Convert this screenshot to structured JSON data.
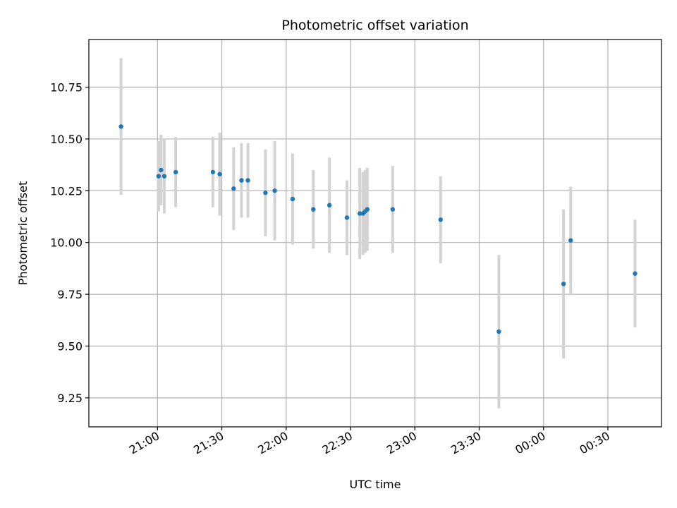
{
  "chart_data": {
    "type": "scatter",
    "title": "Photometric offset variation",
    "xlabel": "UTC time",
    "ylabel": "Photometric offset",
    "x_unit": "datetime",
    "xlim": [
      "20:28",
      "24:55"
    ],
    "ylim": [
      9.11,
      10.98
    ],
    "x_ticks": [
      {
        "time": "21:00",
        "label": "21:00"
      },
      {
        "time": "21:30",
        "label": "21:30"
      },
      {
        "time": "22:00",
        "label": "22:00"
      },
      {
        "time": "22:30",
        "label": "22:30"
      },
      {
        "time": "23:00",
        "label": "23:00"
      },
      {
        "time": "23:30",
        "label": "23:30"
      },
      {
        "time": "24:00",
        "label": "00:00"
      },
      {
        "time": "24:30",
        "label": "00:30"
      }
    ],
    "y_ticks": [
      9.25,
      9.5,
      9.75,
      10.0,
      10.25,
      10.5,
      10.75
    ],
    "y_tick_labels": [
      "9.25",
      "9.50",
      "9.75",
      "10.00",
      "10.25",
      "10.50",
      "10.75"
    ],
    "grid": true,
    "colors": {
      "point": "#1f77b4",
      "error_bar": "#d3d3d3",
      "grid": "#b0b0b0",
      "axes": "#000000"
    },
    "points": [
      {
        "time": "20:43:00",
        "y": 10.56,
        "err": 0.33
      },
      {
        "time": "21:00:30",
        "y": 10.32,
        "err": 0.17
      },
      {
        "time": "21:01:40",
        "y": 10.35,
        "err": 0.17
      },
      {
        "time": "21:03:10",
        "y": 10.32,
        "err": 0.18
      },
      {
        "time": "21:08:30",
        "y": 10.34,
        "err": 0.17
      },
      {
        "time": "21:25:50",
        "y": 10.34,
        "err": 0.17
      },
      {
        "time": "21:29:00",
        "y": 10.33,
        "err": 0.2
      },
      {
        "time": "21:35:30",
        "y": 10.26,
        "err": 0.2
      },
      {
        "time": "21:39:10",
        "y": 10.3,
        "err": 0.18
      },
      {
        "time": "21:42:10",
        "y": 10.3,
        "err": 0.18
      },
      {
        "time": "21:50:20",
        "y": 10.24,
        "err": 0.21
      },
      {
        "time": "21:54:40",
        "y": 10.25,
        "err": 0.24
      },
      {
        "time": "22:03:00",
        "y": 10.21,
        "err": 0.22
      },
      {
        "time": "22:12:40",
        "y": 10.16,
        "err": 0.19
      },
      {
        "time": "22:20:10",
        "y": 10.18,
        "err": 0.23
      },
      {
        "time": "22:28:20",
        "y": 10.12,
        "err": 0.18
      },
      {
        "time": "22:34:20",
        "y": 10.14,
        "err": 0.22
      },
      {
        "time": "22:35:50",
        "y": 10.14,
        "err": 0.2
      },
      {
        "time": "22:36:50",
        "y": 10.15,
        "err": 0.2
      },
      {
        "time": "22:37:50",
        "y": 10.16,
        "err": 0.2
      },
      {
        "time": "22:49:40",
        "y": 10.16,
        "err": 0.21
      },
      {
        "time": "23:12:00",
        "y": 10.11,
        "err": 0.21
      },
      {
        "time": "23:39:10",
        "y": 9.57,
        "err": 0.37
      },
      {
        "time": "24:09:20",
        "y": 9.8,
        "err": 0.36
      },
      {
        "time": "24:12:40",
        "y": 10.01,
        "err": 0.26
      },
      {
        "time": "24:42:40",
        "y": 9.85,
        "err": 0.26
      }
    ]
  }
}
